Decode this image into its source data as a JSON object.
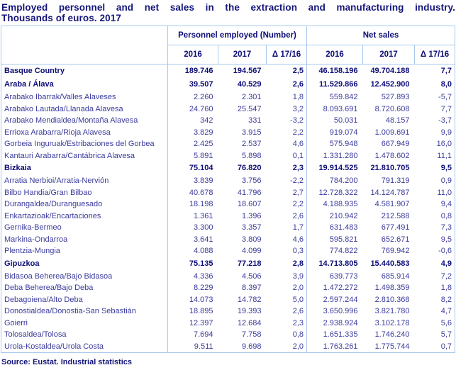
{
  "title": {
    "line1": "Employed personnel and net sales in the extraction and manufacturing industry.",
    "line2": "Thousands of euros. 2017"
  },
  "table": {
    "group_headers": {
      "personnel": "Personnel employed (Number)",
      "net_sales": "Net sales"
    },
    "sub_headers": [
      "2016",
      "2017",
      "Δ 17/16",
      "2016",
      "2017",
      "Δ 17/16"
    ],
    "rows": [
      {
        "label": "Basque Country",
        "bold": true,
        "values": [
          "189.746",
          "194.567",
          "2,5",
          "46.158.196",
          "49.704.188",
          "7,7"
        ]
      },
      {
        "label": "Araba / Álava",
        "bold": true,
        "values": [
          "39.507",
          "40.529",
          "2,6",
          "11.529.866",
          "12.452.900",
          "8,0"
        ]
      },
      {
        "label": "Arabako Ibarrak/Valles Alaveses",
        "bold": false,
        "values": [
          "2.260",
          "2.301",
          "1,8",
          "559.842",
          "527.893",
          "-5,7"
        ]
      },
      {
        "label": "Arabako Lautada/Llanada Alavesa",
        "bold": false,
        "values": [
          "24.760",
          "25.547",
          "3,2",
          "8.093.691",
          "8.720.608",
          "7,7"
        ]
      },
      {
        "label": "Arabako Mendialdea/Montaña Alavesa",
        "bold": false,
        "values": [
          "342",
          "331",
          "-3,2",
          "50.031",
          "48.157",
          "-3,7"
        ]
      },
      {
        "label": "Errioxa Arabarra/Rioja Alavesa",
        "bold": false,
        "values": [
          "3.829",
          "3.915",
          "2,2",
          "919.074",
          "1.009.691",
          "9,9"
        ]
      },
      {
        "label": "Gorbeia Inguruak/Estribaciones del Gorbea",
        "bold": false,
        "values": [
          "2.425",
          "2.537",
          "4,6",
          "575.948",
          "667.949",
          "16,0"
        ]
      },
      {
        "label": "Kantauri Arabarra/Cantábrica Alavesa",
        "bold": false,
        "values": [
          "5.891",
          "5.898",
          "0,1",
          "1.331.280",
          "1.478.602",
          "11,1"
        ]
      },
      {
        "label": "Bizkaia",
        "bold": true,
        "values": [
          "75.104",
          "76.820",
          "2,3",
          "19.914.525",
          "21.810.705",
          "9,5"
        ]
      },
      {
        "label": "Arratia Nerbioi/Arratia-Nervión",
        "bold": false,
        "values": [
          "3.839",
          "3.756",
          "-2,2",
          "784.200",
          "791.319",
          "0,9"
        ]
      },
      {
        "label": "Bilbo Handia/Gran Bilbao",
        "bold": false,
        "values": [
          "40.678",
          "41.796",
          "2,7",
          "12.728.322",
          "14.124.787",
          "11,0"
        ]
      },
      {
        "label": "Durangaldea/Duranguesado",
        "bold": false,
        "values": [
          "18.198",
          "18.607",
          "2,2",
          "4.188.935",
          "4.581.907",
          "9,4"
        ]
      },
      {
        "label": "Enkartazioak/Encartaciones",
        "bold": false,
        "values": [
          "1.361",
          "1.396",
          "2,6",
          "210.942",
          "212.588",
          "0,8"
        ]
      },
      {
        "label": "Gernika-Bermeo",
        "bold": false,
        "values": [
          "3.300",
          "3.357",
          "1,7",
          "631.483",
          "677.491",
          "7,3"
        ]
      },
      {
        "label": "Markina-Ondarroa",
        "bold": false,
        "values": [
          "3.641",
          "3.809",
          "4,6",
          "595.821",
          "652.671",
          "9,5"
        ]
      },
      {
        "label": "Plentzia-Mungia",
        "bold": false,
        "values": [
          "4.088",
          "4.099",
          "0,3",
          "774.822",
          "769.942",
          "-0,6"
        ]
      },
      {
        "label": "Gipuzkoa",
        "bold": true,
        "values": [
          "75.135",
          "77.218",
          "2,8",
          "14.713.805",
          "15.440.583",
          "4,9"
        ]
      },
      {
        "label": "Bidasoa Beherea/Bajo Bidasoa",
        "bold": false,
        "values": [
          "4.336",
          "4.506",
          "3,9",
          "639.773",
          "685.914",
          "7,2"
        ]
      },
      {
        "label": "Deba Beherea/Bajo Deba",
        "bold": false,
        "values": [
          "8.229",
          "8.397",
          "2,0",
          "1.472.272",
          "1.498.359",
          "1,8"
        ]
      },
      {
        "label": "Debagoiena/Alto Deba",
        "bold": false,
        "values": [
          "14.073",
          "14.782",
          "5,0",
          "2.597.244",
          "2.810.368",
          "8,2"
        ]
      },
      {
        "label": "Donostialdea/Donostia-San Sebastián",
        "bold": false,
        "values": [
          "18.895",
          "19.393",
          "2,6",
          "3.650.996",
          "3.821.780",
          "4,7"
        ]
      },
      {
        "label": "Goierri",
        "bold": false,
        "values": [
          "12.397",
          "12.684",
          "2,3",
          "2.938.924",
          "3.102.178",
          "5,6"
        ]
      },
      {
        "label": "Tolosaldea/Tolosa",
        "bold": false,
        "values": [
          "7.694",
          "7.758",
          "0,8",
          "1.651.335",
          "1.746.240",
          "5,7"
        ]
      },
      {
        "label": "Urola-Kostaldea/Urola Costa",
        "bold": false,
        "values": [
          "9.511",
          "9.698",
          "2,0",
          "1.763.261",
          "1.775.744",
          "0,7"
        ]
      }
    ]
  },
  "source": "Source: Eustat. Industrial statistics",
  "colors": {
    "title_text": "#14147a",
    "text_bold": "#0d0d78",
    "text_regular": "#3b3b9d",
    "border_light": "#a6c9ec",
    "background": "#ffffff"
  }
}
